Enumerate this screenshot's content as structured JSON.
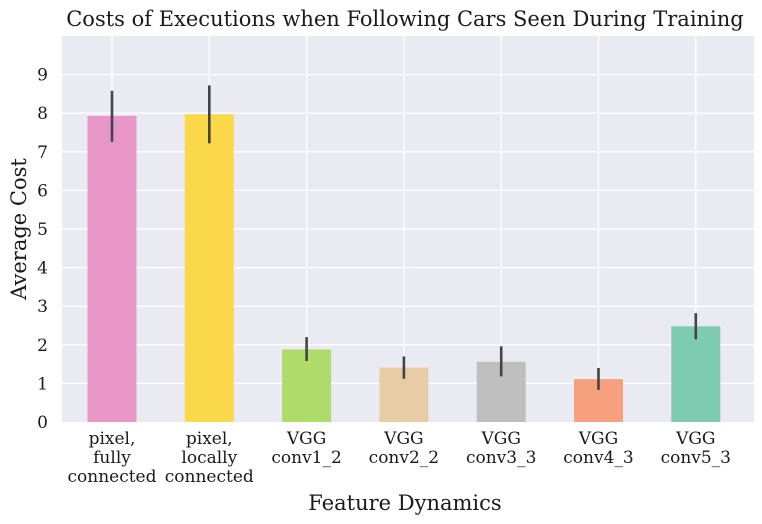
{
  "chart_data": {
    "type": "bar",
    "title": "Costs of Executions when Following Cars Seen During Training",
    "xlabel": "Feature Dynamics",
    "ylabel": "Average Cost",
    "ylim": [
      0,
      10
    ],
    "yticks": [
      0,
      1,
      2,
      3,
      4,
      5,
      6,
      7,
      8,
      9
    ],
    "grid": true,
    "categories": [
      [
        "pixel,",
        "fully",
        "connected"
      ],
      [
        "pixel,",
        "locally",
        "connected"
      ],
      [
        "VGG",
        "conv1_2"
      ],
      [
        "VGG",
        "conv2_2"
      ],
      [
        "VGG",
        "conv3_3"
      ],
      [
        "VGG",
        "conv4_3"
      ],
      [
        "VGG",
        "conv5_3"
      ]
    ],
    "values": [
      7.93,
      7.97,
      1.88,
      1.41,
      1.56,
      1.11,
      2.48
    ],
    "errors": [
      [
        7.26,
        8.58
      ],
      [
        7.22,
        8.72
      ],
      [
        1.58,
        2.2
      ],
      [
        1.12,
        1.7
      ],
      [
        1.18,
        1.96
      ],
      [
        0.83,
        1.4
      ],
      [
        2.14,
        2.82
      ]
    ],
    "colors": [
      "#e896c8",
      "#fbd84a",
      "#aedb6a",
      "#e7cca6",
      "#bfbfbf",
      "#f7a07d",
      "#7fcbb1"
    ],
    "error_color": "#444444"
  }
}
